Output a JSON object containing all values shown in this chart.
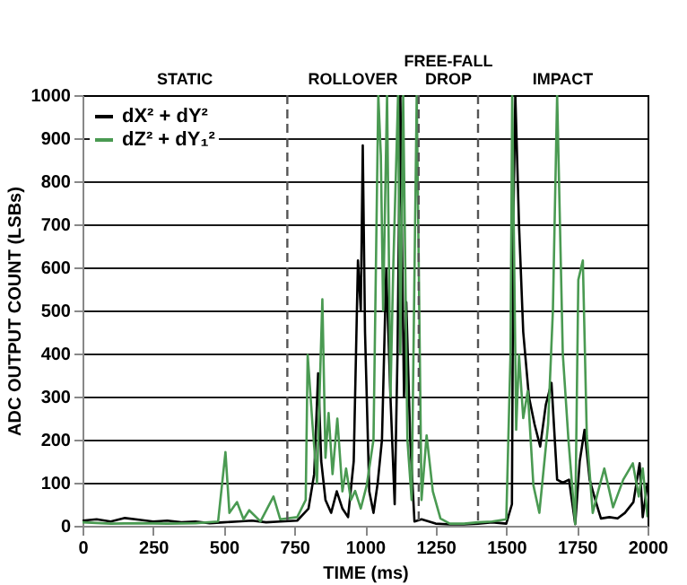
{
  "chart_data": {
    "type": "line",
    "xlabel": "TIME (ms)",
    "ylabel": "ADC OUTPUT COUNT (LSBs)",
    "xlim": [
      0,
      2000
    ],
    "xticks": [
      0,
      250,
      500,
      750,
      1000,
      1250,
      1500,
      1750,
      2000
    ],
    "ylim": [
      0,
      1000
    ],
    "yticks": [
      0,
      100,
      200,
      300,
      400,
      500,
      600,
      700,
      800,
      900,
      1000
    ],
    "grid": "y",
    "legend": "top left",
    "line_style": "solid",
    "marker": "none",
    "series": [
      {
        "name": "dX² + dY²",
        "color": "#000000",
        "x": [
          0,
          50,
          100,
          150,
          200,
          250,
          300,
          350,
          400,
          450,
          500,
          550,
          600,
          650,
          700,
          760,
          800,
          820,
          834,
          845,
          860,
          880,
          900,
          920,
          940,
          960,
          975,
          985,
          992,
          1000,
          1015,
          1030,
          1045,
          1060,
          1075,
          1090,
          1105,
          1115,
          1125,
          1130,
          1138,
          1146,
          1160,
          1175,
          1200,
          1250,
          1300,
          1350,
          1400,
          1450,
          1500,
          1520,
          1525,
          1532,
          1545,
          1560,
          1580,
          1600,
          1620,
          1640,
          1660,
          1680,
          1700,
          1722,
          1744,
          1760,
          1777,
          1795,
          1815,
          1835,
          1865,
          1894,
          1920,
          1950,
          1972,
          1983,
          2000
        ],
        "values": [
          12,
          15,
          10,
          18,
          14,
          10,
          12,
          8,
          10,
          6,
          8,
          10,
          12,
          8,
          10,
          12,
          40,
          120,
          354,
          150,
          60,
          30,
          80,
          40,
          20,
          150,
          616,
          500,
          883,
          450,
          80,
          30,
          100,
          200,
          597,
          300,
          50,
          400,
          1000,
          700,
          300,
          519,
          200,
          10,
          15,
          5,
          3,
          3,
          5,
          8,
          5,
          50,
          700,
          1000,
          700,
          450,
          300,
          236,
          184,
          281,
          332,
          107,
          100,
          107,
          4,
          150,
          223,
          107,
          60,
          17,
          20,
          17,
          30,
          55,
          145,
          20,
          100
        ]
      },
      {
        "name": "dZ² + dY₁²",
        "color": "#4a9a52",
        "x": [
          0,
          100,
          200,
          300,
          400,
          480,
          506,
          520,
          547,
          570,
          590,
          630,
          676,
          700,
          760,
          790,
          797,
          814,
          830,
          849,
          860,
          871,
          885,
          902,
          920,
          933,
          950,
          965,
          985,
          1006,
          1030,
          1047,
          1056,
          1064,
          1078,
          1090,
          1100,
          1117,
          1125,
          1135,
          1150,
          1165,
          1183,
          1200,
          1218,
          1240,
          1267,
          1300,
          1350,
          1400,
          1450,
          1500,
          1515,
          1521,
          1535,
          1545,
          1560,
          1576,
          1596,
          1617,
          1648,
          1665,
          1680,
          1700,
          1720,
          1744,
          1755,
          1771,
          1785,
          1806,
          1825,
          1847,
          1878,
          1914,
          1948,
          1969,
          1983,
          2000
        ],
        "values": [
          8,
          5,
          6,
          5,
          6,
          10,
          171,
          30,
          55,
          15,
          36,
          10,
          68,
          15,
          20,
          60,
          397,
          236,
          100,
          526,
          158,
          262,
          120,
          249,
          80,
          133,
          60,
          81,
          40,
          94,
          200,
          1000,
          860,
          500,
          1000,
          300,
          600,
          1000,
          400,
          1000,
          200,
          60,
          1000,
          60,
          210,
          80,
          17,
          5,
          5,
          8,
          10,
          15,
          400,
          1000,
          223,
          397,
          250,
          313,
          94,
          30,
          236,
          500,
          1000,
          400,
          200,
          4,
          571,
          616,
          210,
          30,
          80,
          133,
          43,
          107,
          145,
          68,
          133,
          20
        ]
      }
    ],
    "ref_lines": [
      {
        "axis": "x",
        "value": 725,
        "line_style": "dashed",
        "color": "#555555"
      },
      {
        "axis": "x",
        "value": 1190,
        "line_style": "dashed",
        "color": "#555555"
      },
      {
        "axis": "x",
        "value": 1400,
        "line_style": "dashed",
        "color": "#555555"
      }
    ],
    "annotations": [
      "STATIC",
      "ROLLOVER",
      "FREE-FALL DROP",
      "IMPACT"
    ]
  }
}
